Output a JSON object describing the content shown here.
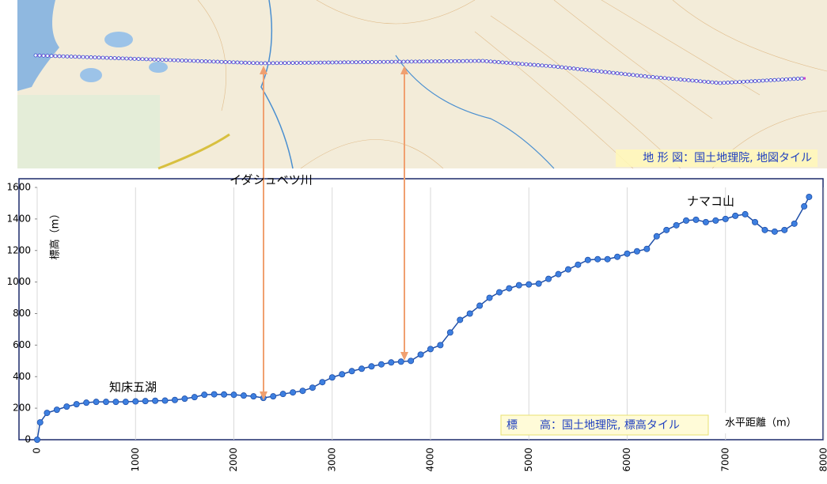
{
  "map": {
    "attribution": "地 形 図：国土地理院, 地図タイル"
  },
  "chart_data": {
    "type": "line",
    "y_label": "標高（m）",
    "x_label": "水平距離（m）",
    "source": "標　　高：国土地理院, 標高タイル",
    "annotations": [
      {
        "text": "イダシュベツ川",
        "x": 2300
      },
      {
        "text": "ナマコ山",
        "x": 6600
      },
      {
        "text": "知床五湖",
        "x": 700
      }
    ],
    "x": [
      0,
      30,
      100,
      200,
      300,
      400,
      500,
      600,
      700,
      800,
      900,
      1000,
      1100,
      1200,
      1300,
      1400,
      1500,
      1600,
      1700,
      1800,
      1900,
      2000,
      2100,
      2200,
      2300,
      2400,
      2500,
      2600,
      2700,
      2800,
      2900,
      3000,
      3100,
      3200,
      3300,
      3400,
      3500,
      3600,
      3700,
      3800,
      3900,
      4000,
      4100,
      4200,
      4300,
      4400,
      4500,
      4600,
      4700,
      4800,
      4900,
      5000,
      5100,
      5200,
      5300,
      5400,
      5500,
      5600,
      5700,
      5800,
      5900,
      6000,
      6100,
      6200,
      6300,
      6400,
      6500,
      6600,
      6700,
      6800,
      6900,
      7000,
      7100,
      7200,
      7300,
      7400,
      7500,
      7600,
      7700,
      7800,
      7850
    ],
    "series": [
      {
        "name": "標高",
        "color": "#3d7fe0",
        "values": [
          0,
          110,
          170,
          190,
          210,
          225,
          235,
          240,
          240,
          240,
          240,
          243,
          245,
          247,
          248,
          252,
          260,
          270,
          285,
          288,
          287,
          285,
          280,
          275,
          265,
          275,
          290,
          300,
          310,
          330,
          365,
          395,
          415,
          435,
          450,
          465,
          478,
          490,
          495,
          500,
          540,
          575,
          600,
          680,
          760,
          800,
          850,
          900,
          935,
          960,
          980,
          985,
          990,
          1020,
          1050,
          1080,
          1110,
          1140,
          1145,
          1145,
          1160,
          1180,
          1195,
          1210,
          1290,
          1330,
          1360,
          1390,
          1395,
          1380,
          1390,
          1400,
          1420,
          1430,
          1380,
          1330,
          1320,
          1330,
          1370,
          1480,
          1540
        ]
      }
    ],
    "xlim": [
      0,
      8000
    ],
    "ylim": [
      0,
      1600
    ],
    "xticks": [
      0,
      1000,
      2000,
      3000,
      4000,
      5000,
      6000,
      7000,
      8000
    ],
    "yticks": [
      0,
      200,
      400,
      600,
      800,
      1000,
      1200,
      1400,
      1600
    ],
    "grid": true
  }
}
